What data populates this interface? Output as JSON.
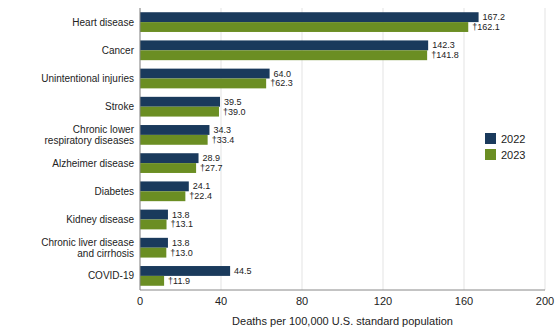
{
  "chart_data": {
    "type": "bar",
    "orientation": "horizontal",
    "categories": [
      "Heart disease",
      "Cancer",
      "Unintentional injuries",
      "Stroke",
      "Chronic lower\nrespiratory diseases",
      "Alzheimer disease",
      "Diabetes",
      "Kidney disease",
      "Chronic liver disease\nand cirrhosis",
      "COVID-19"
    ],
    "series": [
      {
        "name": "2022",
        "color": "#1a3a5c",
        "values": [
          167.2,
          142.3,
          64.0,
          39.5,
          34.3,
          28.9,
          24.1,
          13.8,
          13.8,
          44.5
        ],
        "value_labels": [
          "167.2",
          "142.3",
          "64.0",
          "39.5",
          "34.3",
          "28.9",
          "24.1",
          "13.8",
          "13.8",
          "44.5"
        ]
      },
      {
        "name": "2023",
        "color": "#6b8e23",
        "values": [
          162.1,
          141.8,
          62.3,
          39.0,
          33.4,
          27.7,
          22.4,
          13.1,
          13.0,
          11.9
        ],
        "value_labels": [
          "†162.1",
          "†141.8",
          "†62.3",
          "†39.0",
          "†33.4",
          "†27.7",
          "†22.4",
          "†13.1",
          "†13.0",
          "†11.9"
        ]
      }
    ],
    "xlabel": "Deaths per 100,000 U.S. standard population",
    "xlim": [
      0,
      200
    ],
    "xticks": [
      0,
      40,
      80,
      120,
      160,
      200
    ],
    "grid": true,
    "legend": "right",
    "data_labels": true
  }
}
